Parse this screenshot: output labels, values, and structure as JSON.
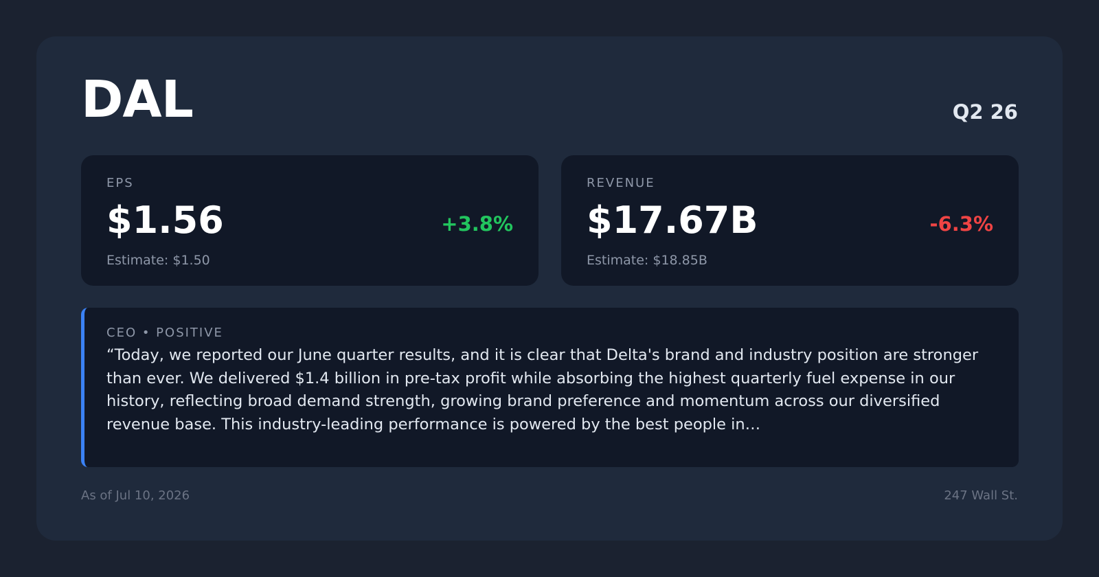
{
  "header": {
    "ticker": "DAL",
    "period": "Q2 26"
  },
  "metrics": [
    {
      "label": "EPS",
      "value": "$1.56",
      "change": "+3.8%",
      "estimate": "Estimate: $1.50",
      "change_color": "#22c55e"
    },
    {
      "label": "REVENUE",
      "value": "$17.67B",
      "change": "-6.3%",
      "estimate": "Estimate: $18.85B",
      "change_color": "#ef4444"
    }
  ],
  "quote": {
    "label": "CEO • POSITIVE",
    "text": "“Today, we reported our June quarter results, and it is clear that Delta's brand and industry position are stronger than ever. We delivered $1.4 billion in pre-tax profit while absorbing the highest quarterly fuel expense in our history, reflecting broad demand strength, growing brand preference and momentum across our diversified revenue base. This industry-leading performance is powered by the best people in…",
    "accent_color": "#3b82f6"
  },
  "footer": {
    "date": "As of Jul 10, 2026",
    "source": "247 Wall St."
  }
}
